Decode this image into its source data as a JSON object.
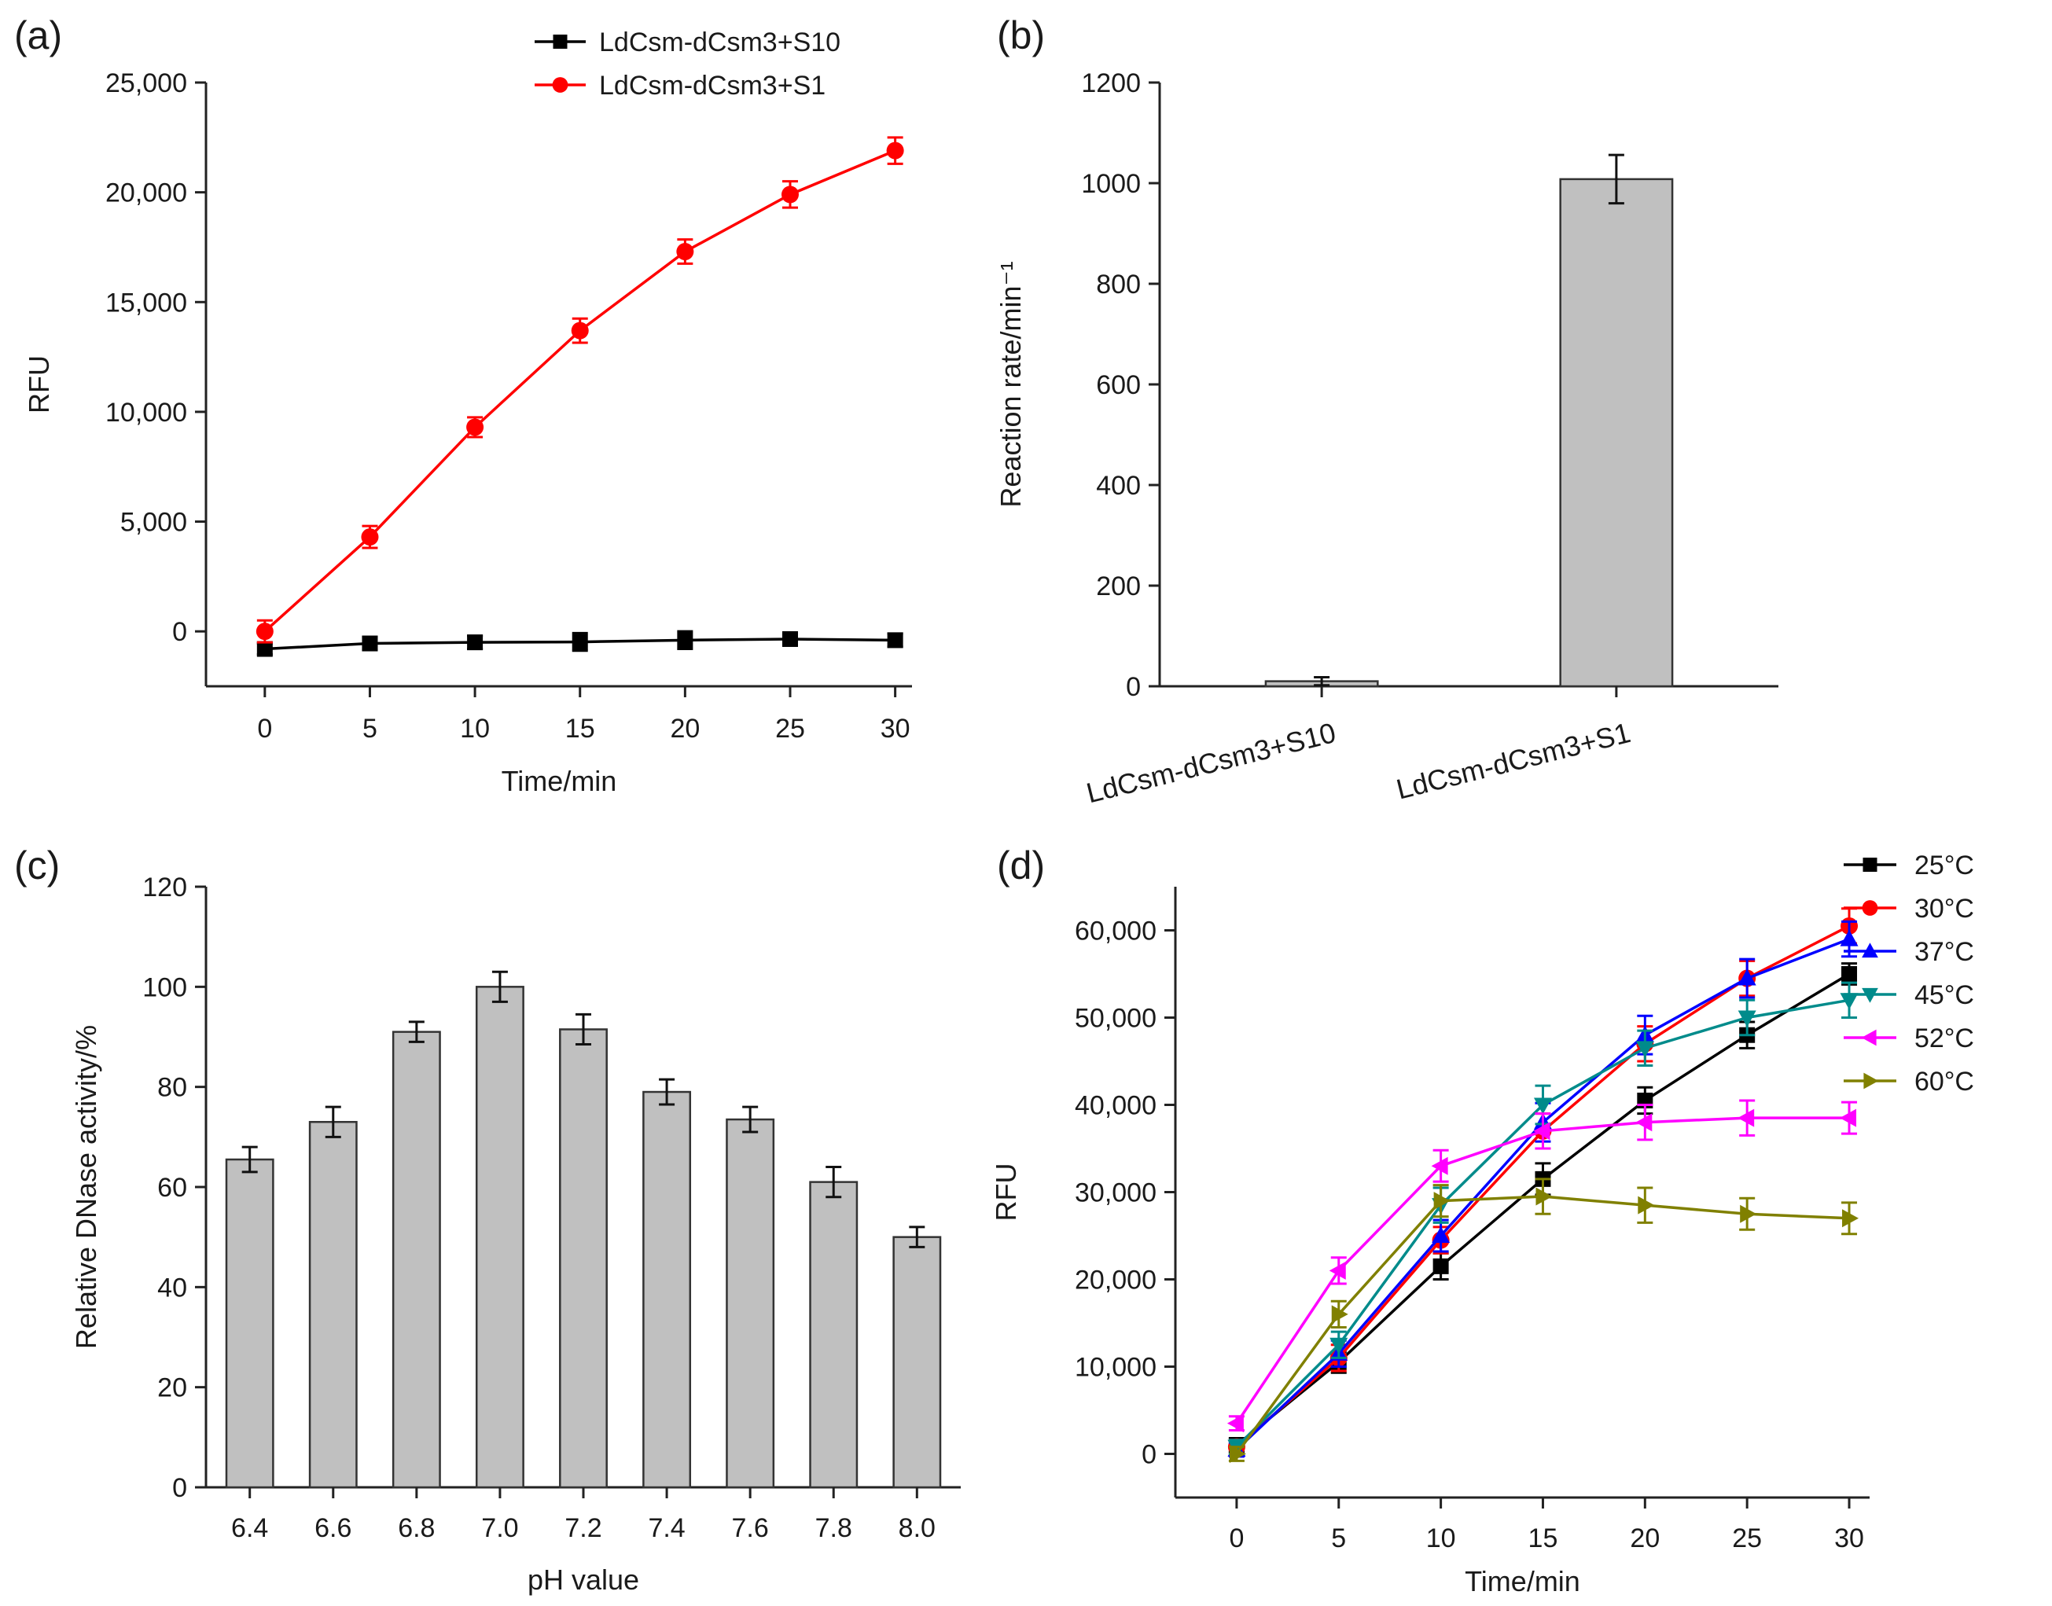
{
  "figure_title": "",
  "chart_data": [
    {
      "id": "a",
      "panel_label": "(a)",
      "type": "line",
      "xlabel": "Time/min",
      "ylabel": "RFU",
      "x": [
        0,
        5,
        10,
        15,
        20,
        25,
        30
      ],
      "xlim": [
        -2.8,
        30.8
      ],
      "ylim": [
        -2500,
        25000
      ],
      "xticks": [
        0,
        5,
        10,
        15,
        20,
        25,
        30
      ],
      "xtick_labels": [
        "0",
        "5",
        "10",
        "15",
        "20",
        "25",
        "30"
      ],
      "yticks": [
        0,
        5000,
        10000,
        15000,
        20000,
        25000
      ],
      "ytick_labels": [
        "0",
        "5,000",
        "10,000",
        "15,000",
        "20,000",
        "25,000"
      ],
      "legend_position": "top-right",
      "series": [
        {
          "name": "LdCsm-dCsm3+S10",
          "color": "#000000",
          "marker": "square",
          "values": [
            -800,
            -550,
            -500,
            -480,
            -400,
            -350,
            -400
          ],
          "errors": [
            250,
            300,
            300,
            400,
            400,
            250,
            300
          ]
        },
        {
          "name": "LdCsm-dCsm3+S1",
          "color": "#ff0000",
          "marker": "circle",
          "values": [
            0,
            4300,
            9300,
            13700,
            17300,
            19900,
            21900
          ],
          "errors": [
            500,
            500,
            450,
            550,
            550,
            600,
            600
          ]
        }
      ]
    },
    {
      "id": "b",
      "panel_label": "(b)",
      "type": "bar",
      "xlabel": "",
      "ylabel": "Reaction rate/min⁻¹",
      "categories": [
        "LdCsm-dCsm3+S10",
        "LdCsm-dCsm3+S1"
      ],
      "values": [
        10,
        1008
      ],
      "errors": [
        8,
        48
      ],
      "ylim": [
        0,
        1200
      ],
      "yticks": [
        0,
        200,
        400,
        600,
        800,
        1000,
        1200
      ],
      "ytick_labels": [
        "0",
        "200",
        "400",
        "600",
        "800",
        "1000",
        "1200"
      ],
      "bar_color": "#c0c0c0"
    },
    {
      "id": "c",
      "panel_label": "(c)",
      "type": "bar",
      "xlabel": "pH value",
      "ylabel": "Relative DNase activity/%",
      "categories": [
        "6.4",
        "6.6",
        "6.8",
        "7.0",
        "7.2",
        "7.4",
        "7.6",
        "7.8",
        "8.0"
      ],
      "values": [
        65.5,
        73,
        91,
        100,
        91.5,
        79,
        73.5,
        61,
        50
      ],
      "errors": [
        2.5,
        3,
        2,
        3,
        3,
        2.5,
        2.5,
        3,
        2
      ],
      "ylim": [
        0,
        120
      ],
      "yticks": [
        0,
        20,
        40,
        60,
        80,
        100,
        120
      ],
      "ytick_labels": [
        "0",
        "20",
        "40",
        "60",
        "80",
        "100",
        "120"
      ],
      "bar_color": "#c0c0c0"
    },
    {
      "id": "d",
      "panel_label": "(d)",
      "type": "line",
      "xlabel": "Time/min",
      "ylabel": "RFU",
      "x": [
        0,
        5,
        10,
        15,
        20,
        25,
        30
      ],
      "xlim": [
        -3,
        31
      ],
      "ylim": [
        -5000,
        65000
      ],
      "xticks": [
        0,
        5,
        10,
        15,
        20,
        25,
        30
      ],
      "xtick_labels": [
        "0",
        "5",
        "10",
        "15",
        "20",
        "25",
        "30"
      ],
      "yticks": [
        0,
        10000,
        20000,
        30000,
        40000,
        50000,
        60000
      ],
      "ytick_labels": [
        "0",
        "10,000",
        "20,000",
        "30,000",
        "40,000",
        "50,000",
        "60,000"
      ],
      "legend_position": "top-right outside",
      "series": [
        {
          "name": "25°C",
          "color": "#000000",
          "marker": "square",
          "values": [
            1000,
            10500,
            21500,
            31500,
            40500,
            48000,
            55000
          ],
          "errors": [
            800,
            1200,
            1500,
            1800,
            1500,
            1500,
            1200
          ]
        },
        {
          "name": "30°C",
          "color": "#ff0000",
          "marker": "circle",
          "values": [
            800,
            11000,
            24500,
            37000,
            47000,
            54500,
            60500
          ],
          "errors": [
            800,
            1500,
            1500,
            2000,
            2000,
            2000,
            2000
          ]
        },
        {
          "name": "37°C",
          "color": "#0000ff",
          "marker": "triangle-up",
          "values": [
            500,
            11500,
            25000,
            38000,
            48000,
            54500,
            59000
          ],
          "errors": [
            800,
            1500,
            1800,
            2200,
            2200,
            2200,
            2000
          ]
        },
        {
          "name": "45°C",
          "color": "#008b8b",
          "marker": "triangle-down",
          "values": [
            800,
            12500,
            28500,
            40000,
            46500,
            50000,
            52000
          ],
          "errors": [
            800,
            1500,
            2000,
            2200,
            2000,
            2000,
            2000
          ]
        },
        {
          "name": "52°C",
          "color": "#ff00ff",
          "marker": "triangle-left",
          "values": [
            3500,
            21000,
            33000,
            37000,
            38000,
            38500,
            38500
          ],
          "errors": [
            800,
            1500,
            1800,
            2000,
            2000,
            2000,
            1800
          ]
        },
        {
          "name": "60°C",
          "color": "#808000",
          "marker": "triangle-right",
          "values": [
            0,
            16000,
            29000,
            29500,
            28500,
            27500,
            27000
          ],
          "errors": [
            800,
            1500,
            1800,
            2000,
            2000,
            1800,
            1800
          ]
        }
      ]
    }
  ]
}
